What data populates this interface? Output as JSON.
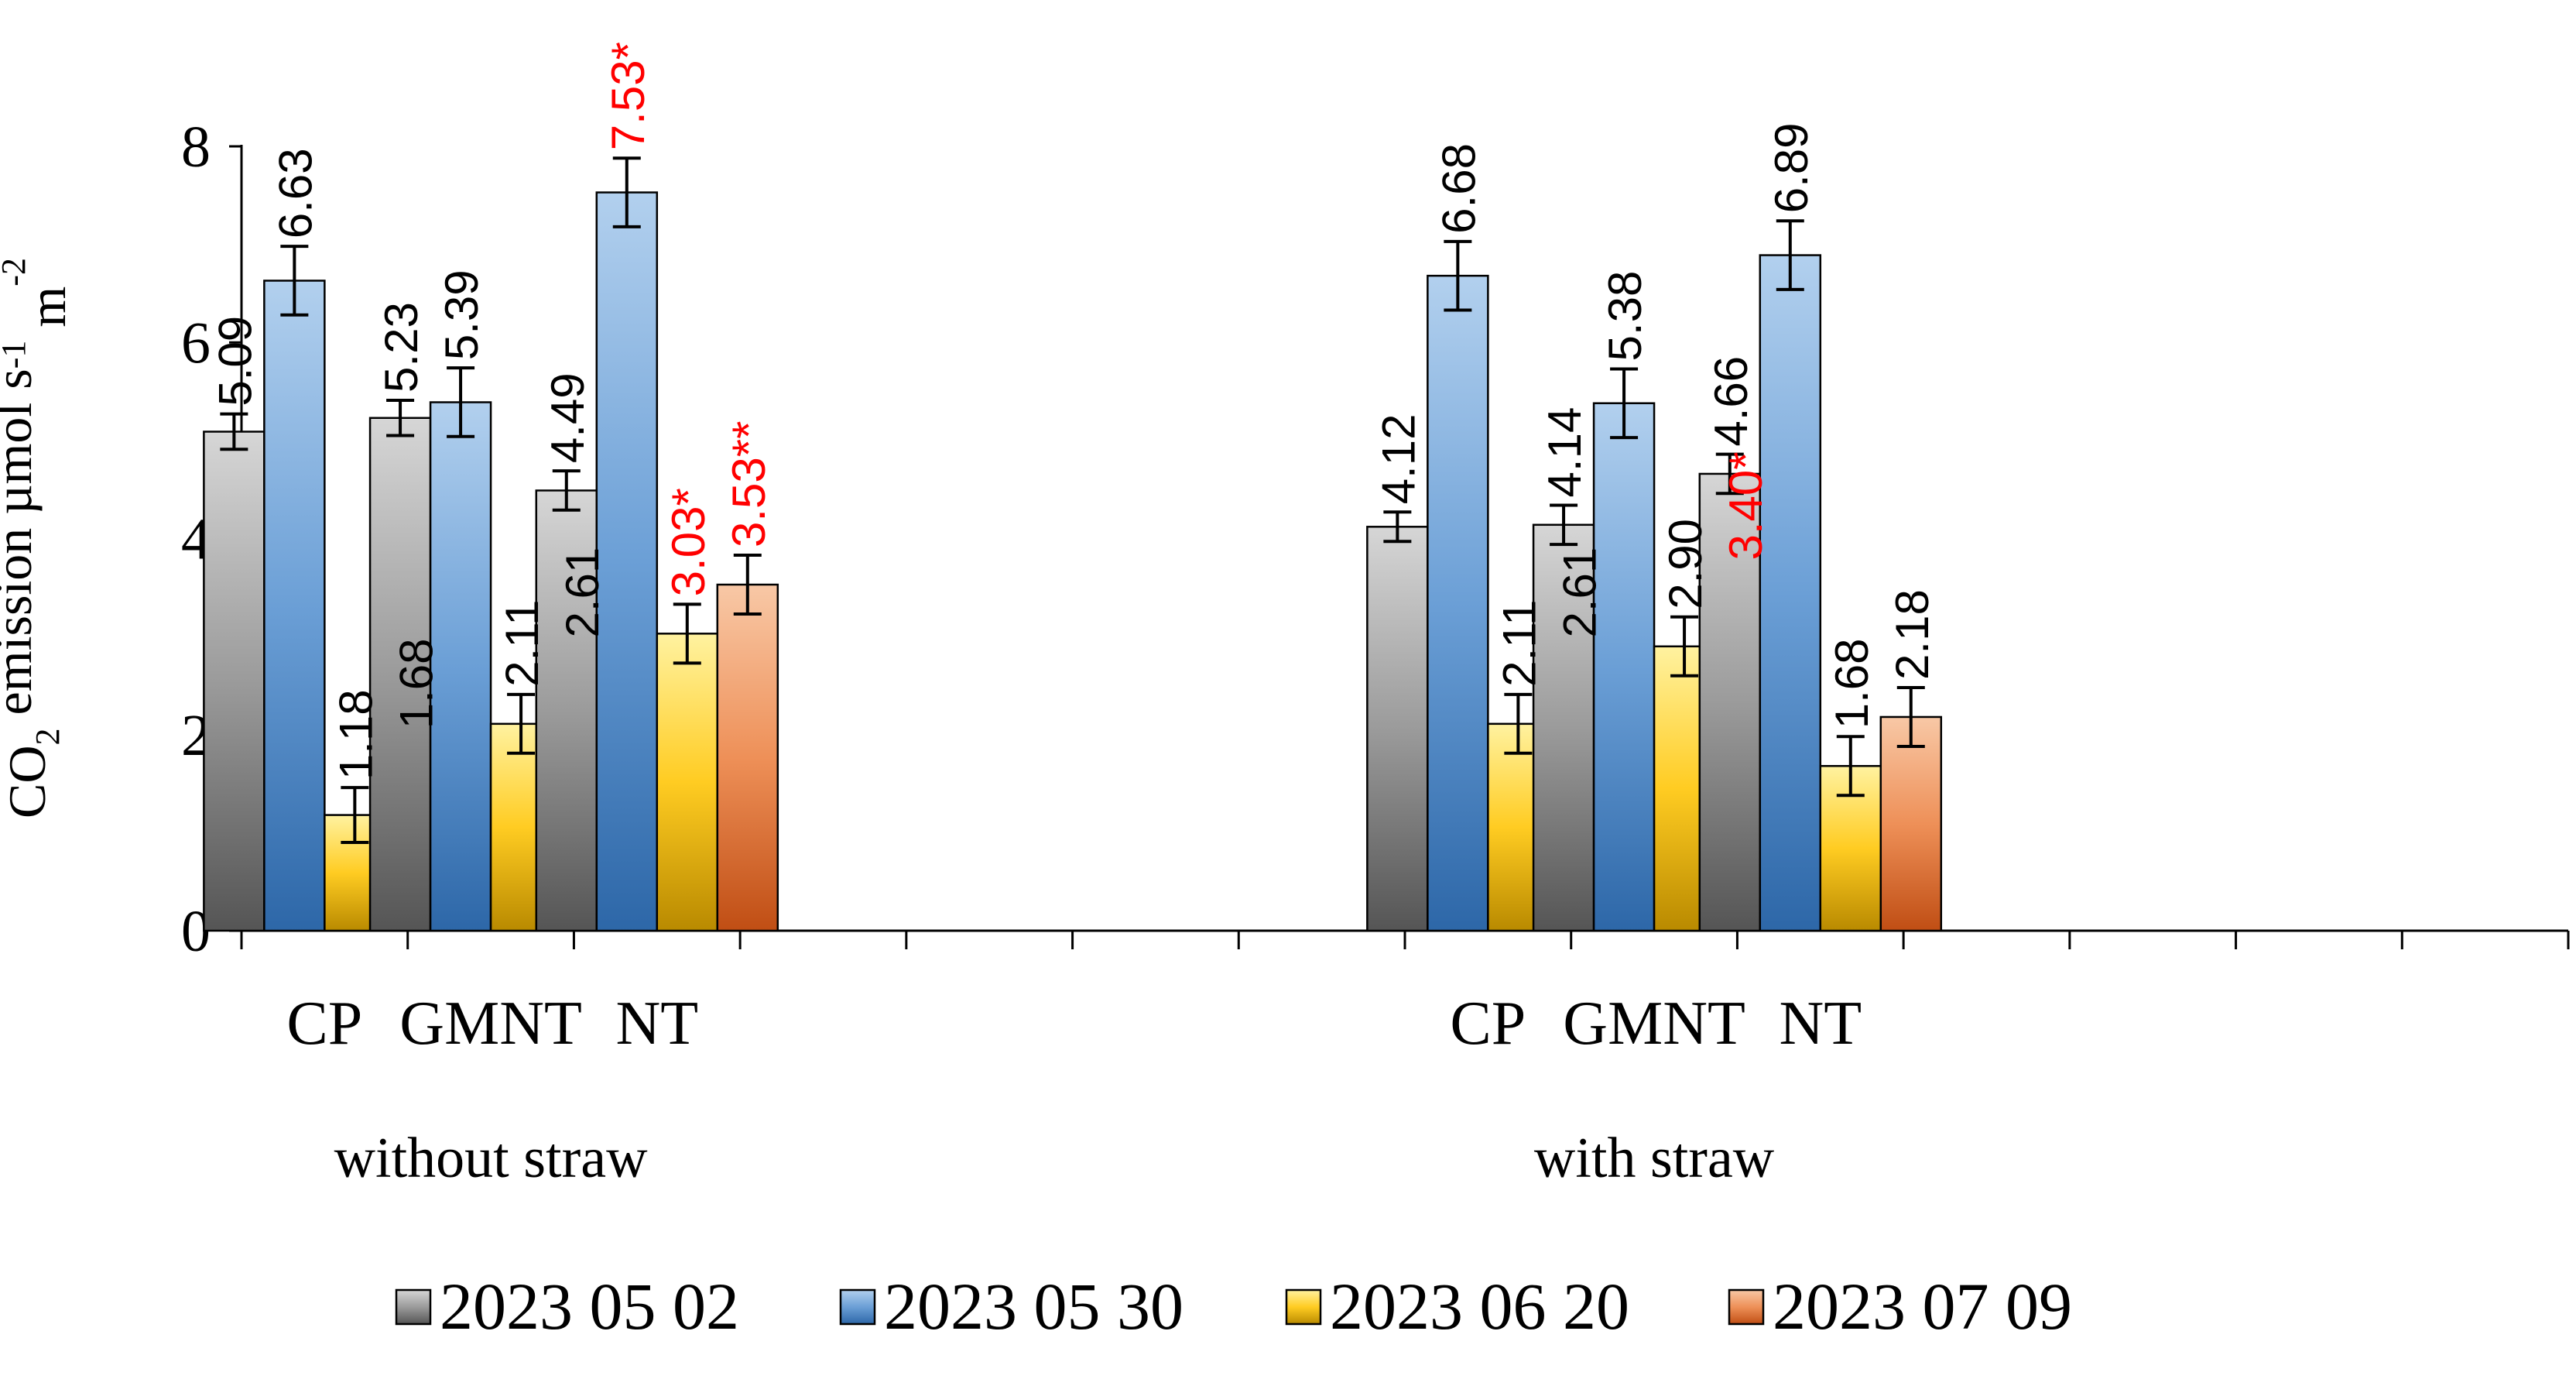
{
  "chart_data": {
    "type": "bar",
    "ylabel_parts": [
      "CO",
      "2",
      " emission µmol s",
      "-1",
      " m",
      "-2"
    ],
    "ylim": [
      0,
      8
    ],
    "yticks": [
      "0",
      "2",
      "4",
      "6",
      "8"
    ],
    "grid": false,
    "legend_position": "bottom",
    "groups": [
      {
        "name": "without straw",
        "categories": [
          {
            "label": "CP",
            "values": [
              5.09,
              6.63,
              1.18,
              1.68
            ],
            "value_labels": [
              "5.09",
              "6.63",
              "1.18",
              "1.68"
            ],
            "highlighted": [
              false,
              false,
              false,
              false
            ],
            "errors": [
              0.18,
              0.35,
              0.28,
              0.3
            ]
          },
          {
            "label": "GMNT",
            "values": [
              5.23,
              5.39,
              2.11,
              2.61
            ],
            "value_labels": [
              "5.23",
              "5.39",
              "2.11",
              "2.61"
            ],
            "highlighted": [
              false,
              false,
              false,
              false
            ],
            "errors": [
              0.18,
              0.35,
              0.3,
              0.3
            ]
          },
          {
            "label": "NT",
            "values": [
              4.49,
              7.53,
              3.03,
              3.53
            ],
            "value_labels": [
              "4.49",
              "7.53*",
              "3.03*",
              "3.53**"
            ],
            "highlighted": [
              false,
              true,
              true,
              true
            ],
            "errors": [
              0.2,
              0.35,
              0.3,
              0.3
            ]
          }
        ]
      },
      {
        "name": "with straw",
        "categories": [
          {
            "label": "CP",
            "values": [
              4.12,
              6.68,
              2.11,
              2.61
            ],
            "value_labels": [
              "4.12",
              "6.68",
              "2.11",
              "2.61"
            ],
            "highlighted": [
              false,
              false,
              false,
              false
            ],
            "errors": [
              0.15,
              0.35,
              0.3,
              0.3
            ]
          },
          {
            "label": "GMNT",
            "values": [
              4.14,
              5.38,
              2.9,
              3.4
            ],
            "value_labels": [
              "4.14",
              "5.38",
              "2.90",
              "3.40*"
            ],
            "highlighted": [
              false,
              false,
              false,
              true
            ],
            "errors": [
              0.2,
              0.35,
              0.3,
              0.3
            ]
          },
          {
            "label": "NT",
            "values": [
              4.66,
              6.89,
              1.68,
              2.18
            ],
            "value_labels": [
              "4.66",
              "6.89",
              "1.68",
              "2.18"
            ],
            "highlighted": [
              false,
              false,
              false,
              false
            ],
            "errors": [
              0.2,
              0.35,
              0.3,
              0.3
            ]
          }
        ]
      }
    ],
    "series": [
      {
        "name": "2023 05 02",
        "colors": [
          "#d6d6d6",
          "#9b9b9b",
          "#555555"
        ]
      },
      {
        "name": "2023 05 30",
        "colors": [
          "#b2d0ee",
          "#6b9fd6",
          "#2d67a8"
        ]
      },
      {
        "name": "2023 06 20",
        "colors": [
          "#fff2a0",
          "#ffcc22",
          "#b98a00"
        ]
      },
      {
        "name": "2023 07 09",
        "colors": [
          "#f8c8a6",
          "#ee9058",
          "#c04e14"
        ]
      }
    ],
    "highlight_color": "#ff0000"
  }
}
